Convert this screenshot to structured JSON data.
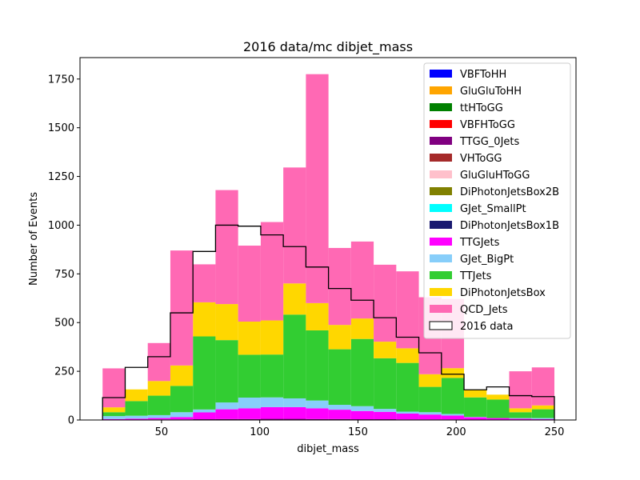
{
  "chart_data": {
    "type": "bar",
    "stacked": true,
    "title": "2016 data/mc dibjet_mass",
    "xlabel": "dibjet_mass",
    "ylabel": "Number of Events",
    "xlim": [
      8.5,
      261
    ],
    "ylim": [
      0,
      1860
    ],
    "xticks": [
      50,
      100,
      150,
      200,
      250
    ],
    "yticks": [
      0,
      250,
      500,
      750,
      1000,
      1250,
      1500,
      1750
    ],
    "bin_edges": [
      20,
      31.5,
      43,
      54.5,
      66,
      77.5,
      89,
      100.5,
      112,
      123.5,
      135,
      146.5,
      158,
      169.5,
      181,
      192.5,
      204,
      215.5,
      227,
      238.5,
      250
    ],
    "legend_position": "upper right",
    "series": [
      {
        "name": "VBFToHH",
        "color": "#0000ff",
        "values": [
          0,
          0,
          0,
          0,
          0,
          0,
          0,
          0,
          0,
          0,
          0,
          0,
          0,
          0,
          0,
          0,
          0,
          0,
          0,
          0
        ]
      },
      {
        "name": "GluGluToHH",
        "color": "#ffa500",
        "values": [
          0,
          0,
          0,
          0,
          0,
          0,
          0,
          0,
          0,
          0,
          0,
          0,
          0,
          0,
          0,
          0,
          0,
          0,
          0,
          0
        ]
      },
      {
        "name": "ttHToGG",
        "color": "#008000",
        "values": [
          0,
          0,
          0,
          0,
          0,
          0,
          0,
          0,
          0,
          0,
          0,
          0,
          0,
          0,
          0,
          0,
          0,
          0,
          0,
          0
        ]
      },
      {
        "name": "VBFHToGG",
        "color": "#ff0000",
        "values": [
          0,
          0,
          0,
          0,
          0,
          0,
          0,
          0,
          0,
          0,
          0,
          0,
          0,
          0,
          0,
          0,
          0,
          0,
          0,
          0
        ]
      },
      {
        "name": "TTGG_0Jets",
        "color": "#800080",
        "values": [
          2,
          2,
          3,
          3,
          4,
          5,
          5,
          6,
          6,
          5,
          5,
          4,
          4,
          3,
          3,
          3,
          2,
          2,
          2,
          2
        ]
      },
      {
        "name": "VHToGG",
        "color": "#a52a2a",
        "values": [
          0,
          0,
          0,
          0,
          0,
          0,
          0,
          0,
          0,
          0,
          0,
          0,
          0,
          0,
          0,
          0,
          0,
          0,
          0,
          0
        ]
      },
      {
        "name": "GluGluHToGG",
        "color": "#ffc0cb",
        "values": [
          0,
          0,
          0,
          0,
          0,
          0,
          0,
          0,
          0,
          0,
          0,
          0,
          0,
          0,
          0,
          0,
          0,
          0,
          0,
          0
        ]
      },
      {
        "name": "DiPhotonJetsBox2B",
        "color": "#808000",
        "values": [
          0,
          0,
          0,
          0,
          0,
          0,
          0,
          0,
          0,
          0,
          0,
          0,
          0,
          0,
          0,
          0,
          0,
          0,
          0,
          0
        ]
      },
      {
        "name": "GJet_SmallPt",
        "color": "#00ffff",
        "values": [
          0,
          0,
          0,
          0,
          0,
          0,
          0,
          0,
          0,
          0,
          0,
          0,
          0,
          0,
          0,
          0,
          0,
          0,
          0,
          0
        ]
      },
      {
        "name": "DiPhotonJetsBox1B",
        "color": "#191970",
        "values": [
          0,
          0,
          0,
          0,
          0,
          0,
          0,
          0,
          0,
          0,
          0,
          0,
          0,
          0,
          0,
          0,
          0,
          0,
          0,
          0
        ]
      },
      {
        "name": "TTGJets",
        "color": "#ff00ff",
        "values": [
          3,
          5,
          7,
          12,
          35,
          50,
          55,
          60,
          60,
          55,
          48,
          42,
          38,
          30,
          25,
          20,
          12,
          8,
          5,
          3
        ]
      },
      {
        "name": "GJet_BigPt",
        "color": "#87cefa",
        "values": [
          15,
          15,
          15,
          25,
          15,
          35,
          55,
          50,
          45,
          40,
          25,
          25,
          15,
          10,
          12,
          8,
          2,
          0,
          3,
          5
        ]
      },
      {
        "name": "TTJets",
        "color": "#32cd32",
        "values": [
          20,
          75,
          100,
          135,
          375,
          320,
          220,
          220,
          430,
          360,
          285,
          345,
          260,
          250,
          130,
          185,
          100,
          95,
          30,
          45
        ]
      },
      {
        "name": "DiPhotonJetsBox",
        "color": "#ffd700",
        "values": [
          25,
          60,
          75,
          105,
          175,
          185,
          170,
          175,
          160,
          140,
          125,
          105,
          85,
          75,
          65,
          50,
          40,
          25,
          20,
          20
        ]
      },
      {
        "name": "QCD_Jets",
        "color": "#ff69b4",
        "values": [
          200,
          0,
          195,
          590,
          195,
          585,
          390,
          505,
          595,
          1175,
          395,
          395,
          395,
          395,
          395,
          355,
          0,
          0,
          190,
          195
        ]
      }
    ],
    "data_series": {
      "name": "2016 data",
      "style": "step",
      "color": "#000000",
      "values": [
        115,
        270,
        325,
        550,
        865,
        1000,
        995,
        950,
        890,
        785,
        675,
        615,
        525,
        425,
        345,
        235,
        155,
        170,
        125,
        120
      ]
    }
  }
}
